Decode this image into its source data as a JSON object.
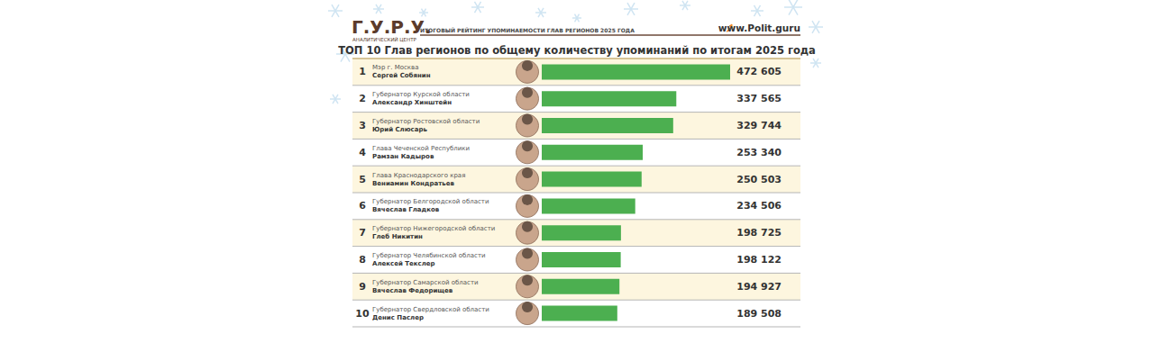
{
  "header": {
    "logo": "Г.У.Р.У.",
    "logo_subtitle": "АНАЛИТИЧЕСКИЙ ЦЕНТР",
    "subtitle": "ИТОГОВЫЙ РЕЙТИНГ УПОМИНАЕМОСТИ ГЛАВ РЕГИОНОВ 2025 ГОДА",
    "url": "www.Polit.guru"
  },
  "chart_data": {
    "type": "bar",
    "title": "ТОП 10 Глав регионов по общему количеству упоминаний по итогам 2025 года",
    "orientation": "horizontal",
    "ranks": [
      1,
      2,
      3,
      4,
      5,
      6,
      7,
      8,
      9,
      10
    ],
    "positions": [
      "Мэр г. Москва",
      "Губернатор Курской области",
      "Губернатор Ростовской области",
      "Глава Чеченской Республики",
      "Глава Краснодарского края",
      "Губернатор Белгородской области",
      "Губернатор Нижегородской области",
      "Губернатор Челябинской области",
      "Губернатор Самарской области",
      "Губернатор Свердловской области"
    ],
    "categories": [
      "Сергей Собянин",
      "Александр Хинштейн",
      "Юрий Слюсарь",
      "Рамзан Кадыров",
      "Вениамин Кондратьев",
      "Вячеслав Гладков",
      "Глеб Никитин",
      "Алексей Текслер",
      "Вячеслав Федорищев",
      "Денис Паслер"
    ],
    "values": [
      472605,
      337565,
      329744,
      253340,
      250503,
      234506,
      198725,
      198122,
      194927,
      189508
    ],
    "value_labels": [
      "472 605",
      "337 565",
      "329 744",
      "253 340",
      "250 503",
      "234 506",
      "198 725",
      "198 122",
      "194 927",
      "189 508"
    ],
    "color": "#4caf50",
    "xlim": [
      0,
      472605
    ],
    "data_labels": true,
    "tick_labels": false,
    "grid": false
  }
}
